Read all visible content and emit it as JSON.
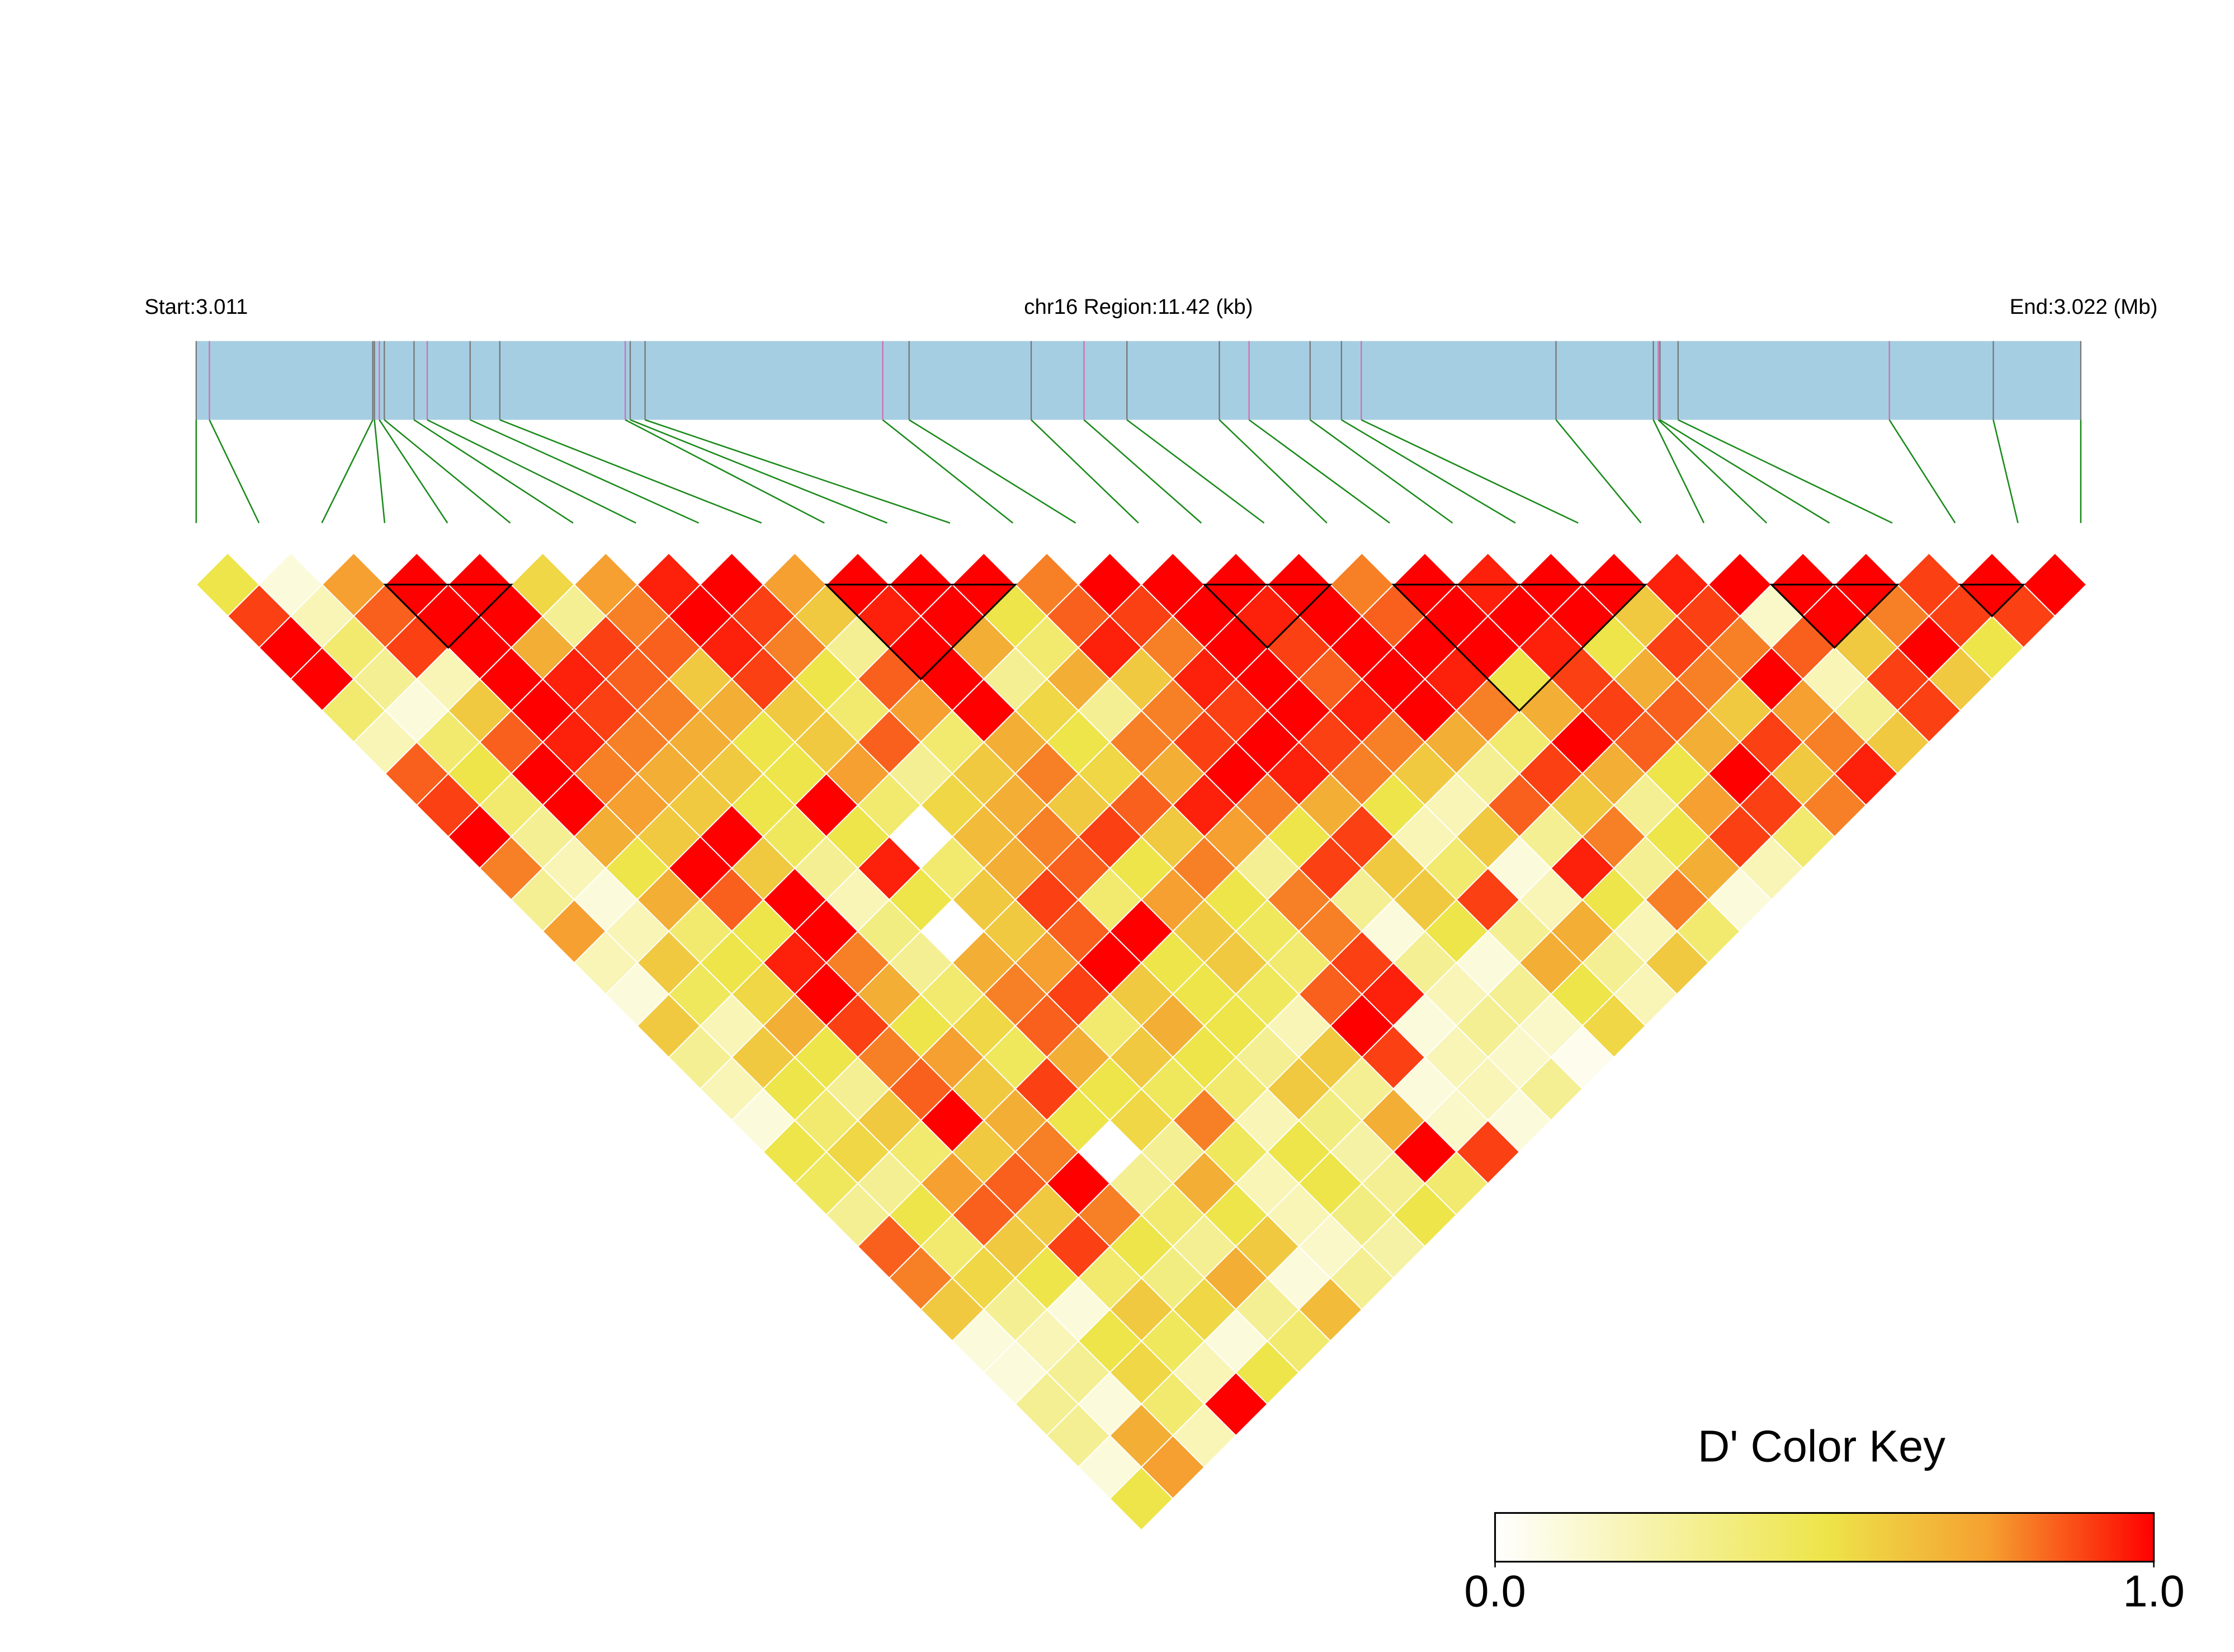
{
  "chart_data": {
    "type": "ld-heatmap",
    "start_label": "Start:3.011",
    "region_label": "chr16 Region:11.42 (kb)",
    "end_label": "End:3.022 (Mb)",
    "xlim": [
      0,
      11.42
    ],
    "snp_positions_kb": [
      0,
      0.08,
      1.07,
      1.08,
      1.11,
      1.14,
      1.32,
      1.4,
      1.66,
      1.84,
      2.6,
      2.63,
      2.72,
      4.16,
      4.32,
      5.06,
      5.38,
      5.64,
      6.2,
      6.38,
      6.75,
      6.94,
      7.06,
      8.24,
      8.83,
      8.86,
      8.87,
      8.98,
      10.26,
      10.89,
      11.42
    ],
    "values": [
      [
        0.5,
        0.1,
        0.75,
        1,
        1,
        0.55,
        0.75,
        0.95,
        1,
        0.75,
        1,
        1,
        1,
        0.8,
        1,
        1,
        1,
        1,
        0.8,
        1,
        0.95,
        1,
        1,
        0.95,
        1,
        1,
        1,
        0.9,
        1,
        1
      ],
      [
        0.9,
        0.2,
        0.85,
        1,
        1,
        0.3,
        0.8,
        1,
        0.9,
        0.6,
        0.95,
        1,
        0.5,
        0.85,
        0.9,
        1,
        0.95,
        1,
        0.85,
        1,
        1,
        1,
        0.6,
        0.9,
        0.15,
        1,
        0.8,
        0.9,
        0.9
      ],
      [
        1,
        0.4,
        0.9,
        1,
        0.7,
        0.9,
        0.85,
        0.95,
        0.8,
        0.3,
        1,
        0.7,
        0.4,
        0.95,
        0.8,
        1,
        0.9,
        1,
        1,
        1,
        0.95,
        0.5,
        0.9,
        0.8,
        0.85,
        0.6,
        1,
        0.5
      ],
      [
        1,
        0.3,
        0.2,
        1,
        0.95,
        0.85,
        0.6,
        0.9,
        0.5,
        0.85,
        1,
        0.3,
        0.7,
        0.6,
        0.95,
        1,
        0.85,
        1,
        0.95,
        0.5,
        0.9,
        0.7,
        0.8,
        1,
        0.2,
        0.9,
        0.6
      ],
      [
        0.4,
        0.1,
        0.6,
        1,
        0.9,
        0.8,
        0.7,
        0.6,
        0.4,
        0.75,
        1,
        0.55,
        0.3,
        0.8,
        0.9,
        1,
        0.95,
        1,
        0.8,
        0.7,
        0.9,
        0.85,
        0.6,
        0.75,
        0.3,
        0.9
      ],
      [
        0.2,
        0.4,
        0.85,
        0.95,
        0.8,
        0.7,
        0.5,
        0.6,
        0.85,
        0.4,
        0.7,
        0.5,
        0.8,
        0.9,
        1,
        0.9,
        0.8,
        0.7,
        0.4,
        1,
        0.85,
        0.7,
        0.9,
        0.8,
        0.6
      ],
      [
        0.85,
        0.5,
        1,
        0.8,
        0.7,
        0.6,
        0.5,
        0.75,
        0.3,
        0.6,
        0.8,
        0.55,
        0.7,
        1,
        0.95,
        0.8,
        0.6,
        0.3,
        0.9,
        0.7,
        0.5,
        1,
        0.6,
        0.95
      ],
      [
        0.9,
        0.4,
        1,
        0.75,
        0.6,
        0.5,
        1,
        0.4,
        0.55,
        0.7,
        0.6,
        0.85,
        0.95,
        0.8,
        0.7,
        0.5,
        0.2,
        0.85,
        0.6,
        0.3,
        0.75,
        0.9,
        0.8
      ],
      [
        1,
        0.3,
        0.7,
        0.6,
        1,
        0.45,
        0.5,
        0,
        0.65,
        0.8,
        0.9,
        0.6,
        0.75,
        0.5,
        0.9,
        0.2,
        0.6,
        0.3,
        0.8,
        0.5,
        0.9,
        0.4
      ],
      [
        0.8,
        0.2,
        0.5,
        1,
        0.6,
        0.3,
        0.95,
        0.4,
        0.7,
        0.85,
        0.5,
        0.8,
        0.3,
        0.9,
        0.6,
        0.4,
        0.1,
        0.95,
        0.3,
        0.7,
        0.2
      ],
      [
        0.3,
        0.1,
        0.7,
        0.85,
        1,
        0.2,
        0.5,
        0.6,
        0.9,
        0.4,
        0.75,
        0.5,
        0.8,
        0.3,
        0.6,
        0.9,
        0.2,
        0.5,
        0.8,
        0.1
      ],
      [
        0.75,
        0.2,
        0.4,
        0.5,
        1,
        0.35,
        0,
        0.6,
        0.85,
        1,
        0.6,
        0.45,
        0.8,
        0.1,
        0.5,
        0.3,
        0.7,
        0.2,
        0.4
      ],
      [
        0.2,
        0.6,
        0.5,
        0.95,
        0.8,
        0.3,
        0.7,
        0.75,
        1,
        0.5,
        0.6,
        0.4,
        0.9,
        0.3,
        0.1,
        0.7,
        0.3,
        0.6
      ],
      [
        0.1,
        0.45,
        0.55,
        1,
        0.7,
        0.4,
        0.8,
        0.9,
        0.6,
        0.5,
        0.45,
        0.85,
        0.95,
        0.2,
        0.3,
        0.5,
        0.2
      ],
      [
        0.6,
        0.2,
        0.7,
        0.9,
        0.5,
        0.55,
        0.85,
        0.4,
        0.7,
        0.5,
        0.2,
        1,
        0.1,
        0.3,
        0.15,
        0.55
      ],
      [
        0.3,
        0.6,
        0.5,
        0.8,
        0.75,
        0.45,
        0.7,
        0.6,
        0.5,
        0.3,
        0.6,
        0.9,
        0.2,
        0.15,
        0.05
      ],
      [
        0.2,
        0.5,
        0.3,
        0.85,
        0.6,
        0.9,
        0.5,
        0.45,
        0.4,
        0.6,
        0.3,
        0.1,
        0.2,
        0.3
      ],
      [
        0.1,
        0.4,
        0.6,
        1,
        0.7,
        0.5,
        0.55,
        0.8,
        0.2,
        0.35,
        0.7,
        0.15,
        0.1
      ],
      [
        0.5,
        0.55,
        0.4,
        0.6,
        0.8,
        0,
        0.3,
        0.45,
        0.5,
        0.25,
        1,
        0.9
      ],
      [
        0.45,
        0.3,
        0.75,
        0.85,
        1,
        0.3,
        0.7,
        0.2,
        0.5,
        0.3,
        0.4
      ],
      [
        0.3,
        0.5,
        0.85,
        0.6,
        0.8,
        0.4,
        0.5,
        0.2,
        0.35,
        0.5
      ],
      [
        0.85,
        0.4,
        0.6,
        0.9,
        0.5,
        0.3,
        0.6,
        0.15,
        0.25
      ],
      [
        0.8,
        0.55,
        0.5,
        0.4,
        0.35,
        0.7,
        0.1,
        0.3
      ],
      [
        0.6,
        0.3,
        0.1,
        0.6,
        0.55,
        0.3,
        0.65
      ],
      [
        0.1,
        0.2,
        0.5,
        0.45,
        0.1,
        0.4
      ],
      [
        0.1,
        0.3,
        0.55,
        0.2,
        0.5
      ],
      [
        0.3,
        0.1,
        0.4,
        1
      ],
      [
        0.3,
        0.7,
        0.2
      ],
      [
        0.1,
        0.75
      ],
      [
        0.5
      ]
    ],
    "blocks": [
      [
        3,
        5
      ],
      [
        10,
        13
      ],
      [
        16,
        18
      ],
      [
        19,
        23
      ],
      [
        25,
        27
      ],
      [
        28,
        29
      ]
    ],
    "color_stops": [
      "#ffffff",
      "#ede54a",
      "#f5a030",
      "#ff0000"
    ],
    "color_stop_values": [
      0,
      0.5,
      0.75,
      1
    ],
    "legend_title": "D' Color Key",
    "legend_ticks": [
      {
        "value": 0,
        "label": "0.0"
      },
      {
        "value": 1,
        "label": "1.0"
      }
    ]
  }
}
